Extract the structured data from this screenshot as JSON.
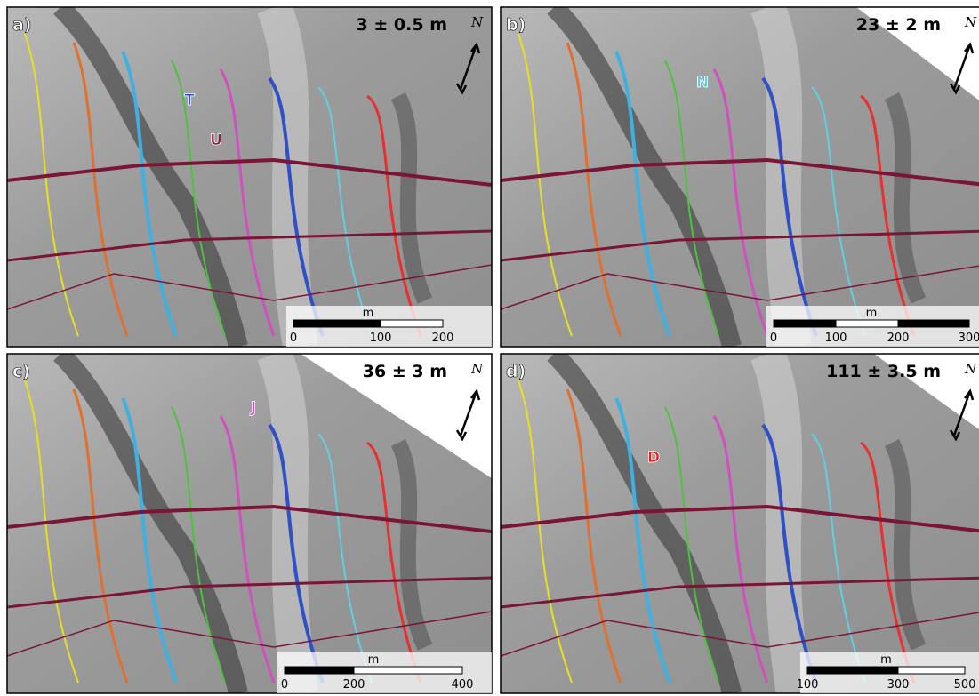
{
  "panels": [
    {
      "label": "a)",
      "offset": "3 ± 0.5 m",
      "north": "N",
      "markers": [
        {
          "text": "T",
          "color": "#3050c8"
        },
        {
          "text": "U",
          "color": "#8b1a3a"
        }
      ],
      "scale": {
        "unit": "m",
        "ticks": [
          "0",
          "100",
          "200"
        ]
      }
    },
    {
      "label": "b)",
      "offset": "23 ± 2 m",
      "north": "N",
      "markers": [
        {
          "text": "N",
          "color": "#5fd0e0"
        }
      ],
      "scale": {
        "unit": "m",
        "ticks": [
          "0",
          "100",
          "200",
          "300"
        ]
      }
    },
    {
      "label": "c)",
      "offset": "36 ± 3 m",
      "north": "N",
      "markers": [
        {
          "text": "J",
          "color": "#d040c0"
        }
      ],
      "scale": {
        "unit": "m",
        "ticks": [
          "0",
          "200",
          "400"
        ]
      }
    },
    {
      "label": "d)",
      "offset": "111 ± 3.5 m",
      "north": "N",
      "markers": [
        {
          "text": "D",
          "color": "#e82020"
        }
      ],
      "scale": {
        "unit": "m",
        "ticks": [
          "100",
          "300",
          "500"
        ]
      }
    }
  ]
}
